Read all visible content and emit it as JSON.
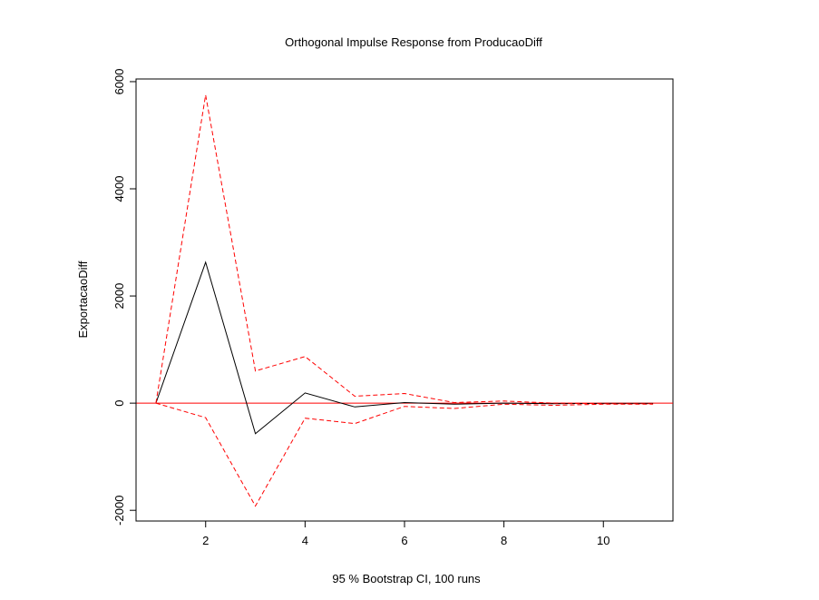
{
  "chart_data": {
    "type": "line",
    "title": "Orthogonal Impulse Response from ProducaoDiff",
    "xlabel": "95 % Bootstrap CI,  100 runs",
    "ylabel": "ExportacaoDiff",
    "x": [
      1,
      2,
      3,
      4,
      5,
      6,
      7,
      8,
      9,
      10,
      11
    ],
    "xlim": [
      0.6,
      11.4
    ],
    "ylim": [
      -2200,
      6050
    ],
    "x_ticks": [
      2,
      4,
      6,
      8,
      10
    ],
    "y_ticks": [
      -2000,
      0,
      2000,
      4000,
      6000
    ],
    "x_tick_labels": [
      "2",
      "4",
      "6",
      "8",
      "10"
    ],
    "y_tick_labels": [
      "-2000",
      "0",
      "2000",
      "4000",
      "6000"
    ],
    "zero_line": {
      "y": 0,
      "color": "#ff0000"
    },
    "grid": false,
    "series": [
      {
        "role": "response",
        "color": "#000000",
        "dash": "solid",
        "values": [
          0,
          2630,
          -570,
          190,
          -70,
          10,
          -20,
          0,
          -10,
          -5,
          -5
        ]
      },
      {
        "role": "upper-ci",
        "color": "#ff0000",
        "dash": "dashed",
        "values": [
          0,
          5750,
          600,
          870,
          130,
          180,
          10,
          40,
          0,
          -10,
          -10
        ]
      },
      {
        "role": "lower-ci",
        "color": "#ff0000",
        "dash": "dashed",
        "values": [
          0,
          -270,
          -1920,
          -280,
          -380,
          -60,
          -100,
          -20,
          -40,
          -20,
          -20
        ]
      }
    ]
  }
}
